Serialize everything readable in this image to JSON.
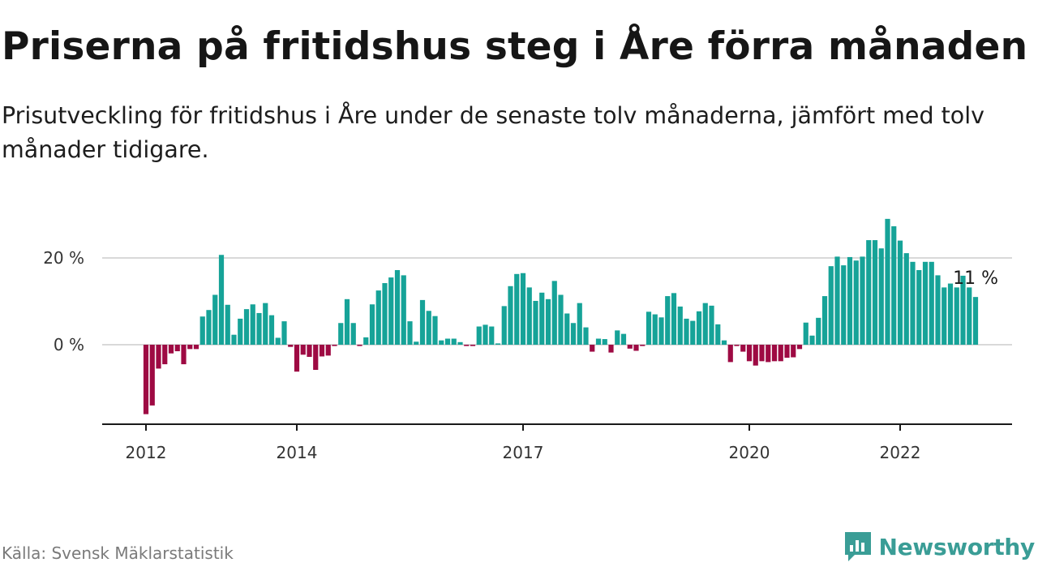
{
  "title": "Priserna på fritidshus steg i Åre förra månaden",
  "subtitle": "Prisutveckling för fritidshus i Åre under de senaste tolv månaderna, jämfört med tolv månader tidigare.",
  "source": "Källa: Svensk Mäklarstatistik",
  "brand": {
    "name": "Newsworthy"
  },
  "colors": {
    "positive": "#16a398",
    "negative": "#9e0a43",
    "axis": "#1a1a1a",
    "grid": "#d9d9d9"
  },
  "chart_data": {
    "type": "bar",
    "unit": "%",
    "x_start": "2012-01",
    "x_end": "2023-02",
    "xticks": [
      "2012",
      "2014",
      "2017",
      "2020",
      "2022"
    ],
    "yticks": [
      {
        "value": 0,
        "label": "0 %"
      },
      {
        "value": 20,
        "label": "20 %"
      }
    ],
    "ylim": [
      -18,
      30
    ],
    "grid": true,
    "last_label": "11 %",
    "values": [
      -16,
      -14,
      -5.5,
      -4.5,
      -2,
      -1.5,
      -4.5,
      -1,
      -1,
      6.5,
      8,
      11.5,
      20.7,
      9.2,
      2.3,
      6,
      8.2,
      9.3,
      7.3,
      9.6,
      6.8,
      1.6,
      5.4,
      -0.5,
      -6.2,
      -2.3,
      -2.8,
      -5.8,
      -2.7,
      -2.5,
      -0.3,
      5,
      10.5,
      5,
      -0.3,
      1.7,
      9.3,
      12.5,
      14.2,
      15.5,
      17.2,
      16,
      5.4,
      0.7,
      10.3,
      7.8,
      6.6,
      1,
      1.4,
      1.4,
      0.6,
      -0.3,
      -0.3,
      4.2,
      4.6,
      4.2,
      0.3,
      8.9,
      13.5,
      16.3,
      16.5,
      13.2,
      10.1,
      12,
      10.5,
      14.7,
      11.5,
      7.2,
      5,
      9.6,
      4,
      -1.6,
      1.4,
      1.3,
      -1.8,
      3.3,
      2.5,
      -0.9,
      -1.4,
      -0.3,
      7.6,
      7,
      6.3,
      11.2,
      11.9,
      8.8,
      6,
      5.5,
      7.7,
      9.6,
      9,
      4.7,
      1,
      -4,
      -0.3,
      -1.6,
      -3.8,
      -4.8,
      -3.8,
      -4,
      -3.8,
      -3.8,
      -3,
      -2.9,
      -1,
      5.1,
      2.1,
      6.2,
      11.2,
      18.1,
      20.3,
      18.3,
      20.2,
      19.4,
      20.3,
      24.1,
      24.1,
      22.2,
      29,
      27.3,
      24,
      21.1,
      19.1,
      17.2,
      19.1,
      19.1,
      16,
      13.2,
      14.1,
      13.2,
      15.9,
      13.2,
      11
    ]
  }
}
